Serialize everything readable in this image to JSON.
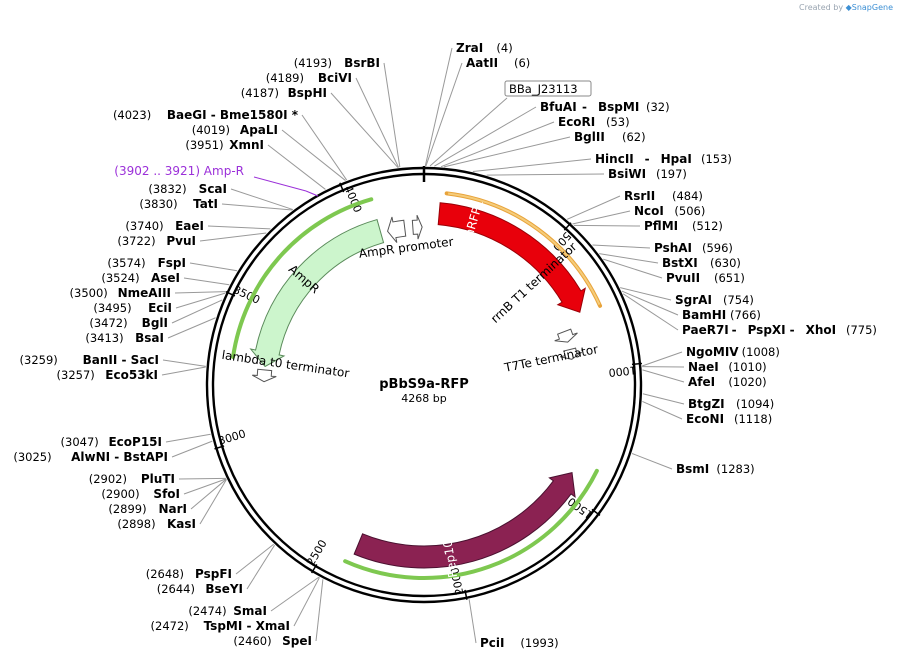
{
  "plasmid": {
    "name": "pBbS9a-RFP",
    "length": "4268 bp",
    "total_bp": 4268
  },
  "credit": {
    "prefix": "Created by",
    "brand": "SnapGene"
  },
  "ticks": [
    {
      "bp": 500,
      "label": "500"
    },
    {
      "bp": 1000,
      "label": "1000"
    },
    {
      "bp": 1500,
      "label": "1500"
    },
    {
      "bp": 2000,
      "label": "2000"
    },
    {
      "bp": 2500,
      "label": "2500"
    },
    {
      "bp": 3000,
      "label": "3000"
    },
    {
      "bp": 3500,
      "label": "3500"
    },
    {
      "bp": 4000,
      "label": "4000"
    }
  ],
  "sites_right": [
    {
      "bp": 4,
      "parts": [
        "ZraI"
      ],
      "num": "(4)"
    },
    {
      "bp": 6,
      "parts": [
        "AatII"
      ],
      "num": "(6)"
    },
    {
      "bp": 32,
      "parts": [
        "BfuAI",
        "BspMI"
      ],
      "num": "(32)"
    },
    {
      "bp": 53,
      "parts": [
        "EcoRI"
      ],
      "num": "(53)"
    },
    {
      "bp": 62,
      "parts": [
        "BglII"
      ],
      "num": "(62)"
    },
    {
      "bp": 153,
      "parts": [
        "HincII",
        "HpaI"
      ],
      "num": "(153)"
    },
    {
      "bp": 197,
      "parts": [
        "BsiWI"
      ],
      "num": "(197)"
    },
    {
      "bp": 484,
      "parts": [
        "RsrII"
      ],
      "num": "(484)"
    },
    {
      "bp": 506,
      "parts": [
        "NcoI"
      ],
      "num": "(506)"
    },
    {
      "bp": 512,
      "parts": [
        "PflMI"
      ],
      "num": "(512)"
    },
    {
      "bp": 596,
      "parts": [
        "PshAI"
      ],
      "num": "(596)"
    },
    {
      "bp": 630,
      "parts": [
        "BstXI"
      ],
      "num": "(630)"
    },
    {
      "bp": 651,
      "parts": [
        "PvuII"
      ],
      "num": "(651)"
    },
    {
      "bp": 754,
      "parts": [
        "SgrAI"
      ],
      "num": "(754)"
    },
    {
      "bp": 766,
      "parts": [
        "BamHI"
      ],
      "num": "(766)"
    },
    {
      "bp": 775,
      "parts": [
        "PaeR7I",
        "PspXI",
        "XhoI"
      ],
      "num": "(775)"
    },
    {
      "bp": 1008,
      "parts": [
        "NgoMIV"
      ],
      "num": "(1008)"
    },
    {
      "bp": 1010,
      "parts": [
        "NaeI"
      ],
      "num": "(1010)"
    },
    {
      "bp": 1020,
      "parts": [
        "AfeI"
      ],
      "num": "(1020)"
    },
    {
      "bp": 1094,
      "parts": [
        "BtgZI"
      ],
      "num": "(1094)"
    },
    {
      "bp": 1118,
      "parts": [
        "EcoNI"
      ],
      "num": "(1118)"
    },
    {
      "bp": 1283,
      "parts": [
        "BsmI"
      ],
      "num": "(1283)"
    },
    {
      "bp": 1993,
      "parts": [
        "PciI"
      ],
      "num": "(1993)"
    }
  ],
  "sites_left": [
    {
      "bp": 4193,
      "parts": [
        "BsrBI"
      ],
      "num": "(4193)"
    },
    {
      "bp": 4189,
      "parts": [
        "BciVI"
      ],
      "num": "(4189)"
    },
    {
      "bp": 4187,
      "parts": [
        "BspHI"
      ],
      "num": "(4187)"
    },
    {
      "bp": 4023,
      "parts": [
        "BaeGI",
        "Bme1580I *"
      ],
      "num": "(4023)"
    },
    {
      "bp": 4019,
      "parts": [
        "ApaLI"
      ],
      "num": "(4019)"
    },
    {
      "bp": 3951,
      "parts": [
        "XmnI"
      ],
      "num": "(3951)"
    },
    {
      "bp": 3832,
      "parts": [
        "ScaI"
      ],
      "num": "(3832)"
    },
    {
      "bp": 3830,
      "parts": [
        "TatI"
      ],
      "num": "(3830)"
    },
    {
      "bp": 3740,
      "parts": [
        "EaeI"
      ],
      "num": "(3740)"
    },
    {
      "bp": 3722,
      "parts": [
        "PvuI"
      ],
      "num": "(3722)"
    },
    {
      "bp": 3574,
      "parts": [
        "FspI"
      ],
      "num": "(3574)"
    },
    {
      "bp": 3524,
      "parts": [
        "AseI"
      ],
      "num": "(3524)"
    },
    {
      "bp": 3500,
      "parts": [
        "NmeAIII"
      ],
      "num": "(3500)"
    },
    {
      "bp": 3495,
      "parts": [
        "EciI"
      ],
      "num": "(3495)"
    },
    {
      "bp": 3472,
      "parts": [
        "BglI"
      ],
      "num": "(3472)"
    },
    {
      "bp": 3413,
      "parts": [
        "BsaI"
      ],
      "num": "(3413)"
    },
    {
      "bp": 3259,
      "parts": [
        "BanII",
        "SacI"
      ],
      "num": "(3259)"
    },
    {
      "bp": 3257,
      "parts": [
        "Eco53kI"
      ],
      "num": "(3257)"
    },
    {
      "bp": 3047,
      "parts": [
        "EcoP15I"
      ],
      "num": "(3047)"
    },
    {
      "bp": 3025,
      "parts": [
        "AlwNI",
        "BstAPI"
      ],
      "num": "(3025)"
    },
    {
      "bp": 2902,
      "parts": [
        "PluTI"
      ],
      "num": "(2902)"
    },
    {
      "bp": 2900,
      "parts": [
        "SfoI"
      ],
      "num": "(2900)"
    },
    {
      "bp": 2899,
      "parts": [
        "NarI"
      ],
      "num": "(2899)"
    },
    {
      "bp": 2898,
      "parts": [
        "KasI"
      ],
      "num": "(2898)"
    },
    {
      "bp": 2648,
      "parts": [
        "PspFI"
      ],
      "num": "(2648)"
    },
    {
      "bp": 2644,
      "parts": [
        "BseYI"
      ],
      "num": "(2644)"
    },
    {
      "bp": 2474,
      "parts": [
        "SmaI"
      ],
      "num": "(2474)"
    },
    {
      "bp": 2472,
      "parts": [
        "TspMI",
        "XmaI"
      ],
      "num": "(2472)"
    },
    {
      "bp": 2460,
      "parts": [
        "SpeI"
      ],
      "num": "(2460)"
    }
  ],
  "feature_callouts": [
    {
      "text": "BBa_J23113",
      "bp": 20
    },
    {
      "text": "(3902 .. 3921)  Amp-R",
      "bp": 3911
    }
  ],
  "features": {
    "mrfp1": {
      "label": "mRFP1",
      "color": "#e8000b"
    },
    "rrnb": {
      "label": "rrnB T1 terminator"
    },
    "t7te": {
      "label": "T7Te terminator"
    },
    "rep101": {
      "label": "Rep101",
      "color": "#8b2252"
    },
    "ampr": {
      "label": "AmpR",
      "color": "#ccf5cc"
    },
    "ampr_promoter": {
      "label": "AmpR promoter"
    },
    "lambda_t0": {
      "label": "lambda t0 terminator"
    },
    "primer_color": "#7ec850",
    "orange_color": "#e8a33a"
  }
}
